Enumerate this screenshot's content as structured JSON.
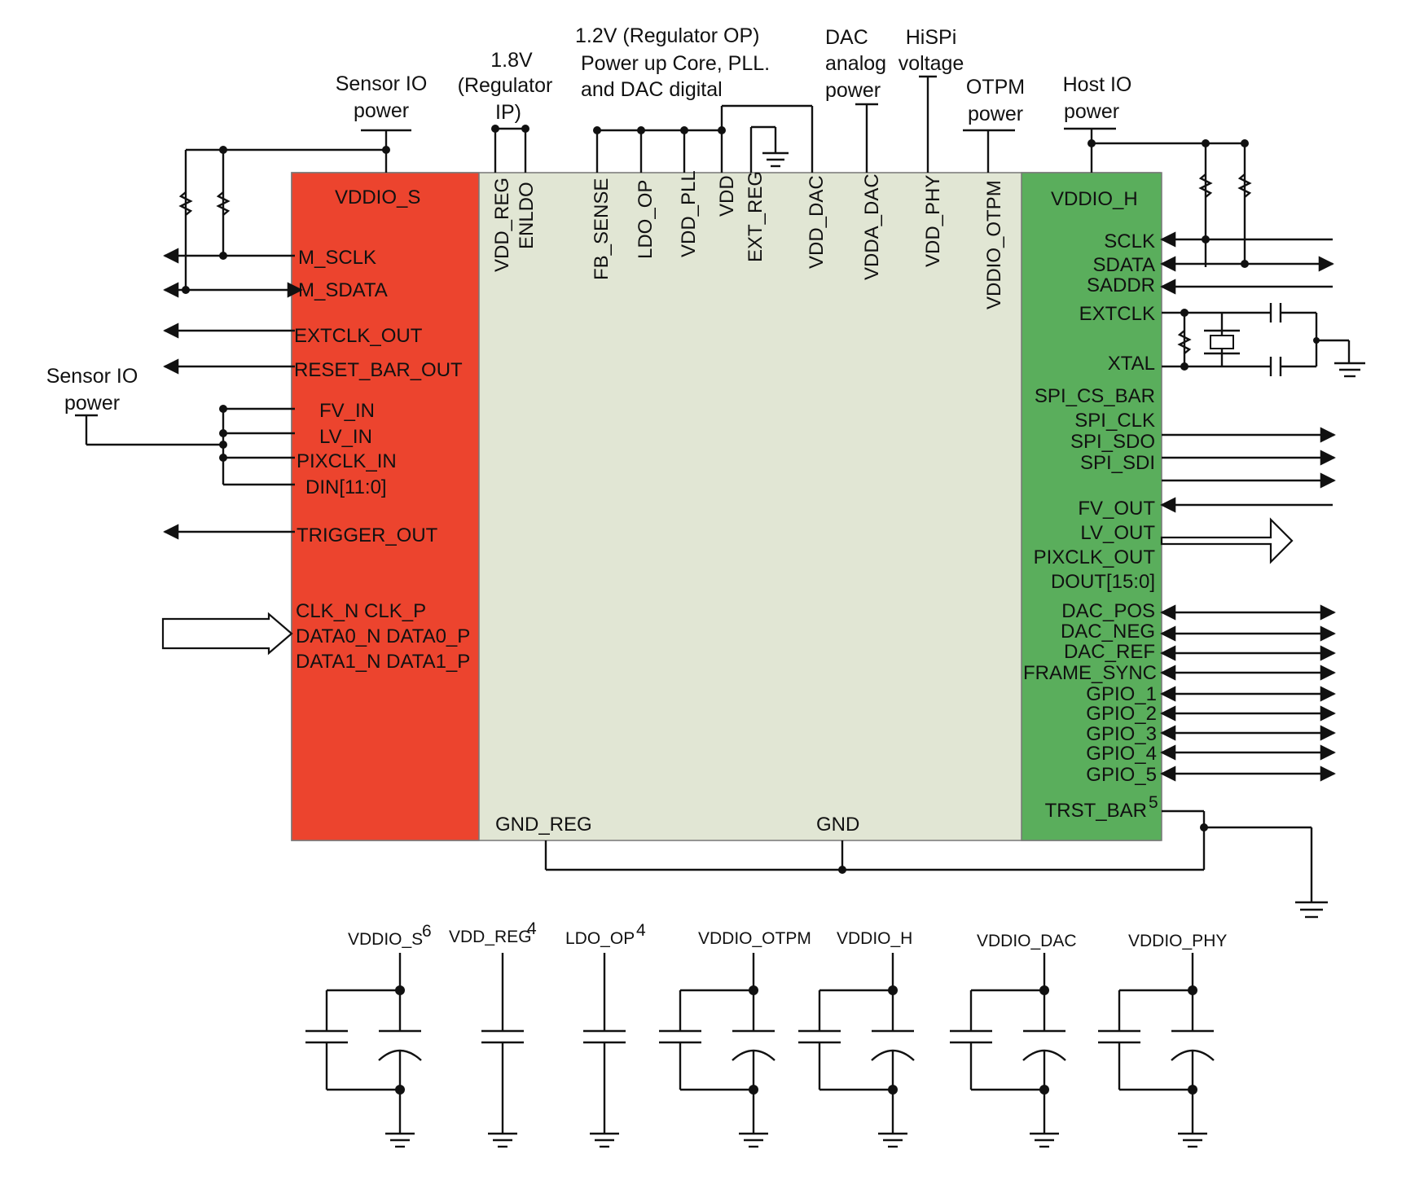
{
  "colors": {
    "left_block": "#EC442E",
    "core_block": "#E1E6D4",
    "right_block": "#5AAE5C",
    "ink": "#111111"
  },
  "supply_labels": {
    "sensor_io_top": [
      "Sensor IO",
      "power"
    ],
    "v18": [
      "1.8V",
      "(Regulator",
      "IP)"
    ],
    "v12": [
      "1.2V  (Regulator OP)",
      "Power up Core, PLL.",
      "and DAC digital"
    ],
    "dac_analog": [
      "DAC",
      "analog",
      "power"
    ],
    "hispi": [
      "HiSPi",
      "voltage"
    ],
    "otpm": [
      "OTPM",
      "power"
    ],
    "host_io": [
      "Host IO",
      "power"
    ],
    "sensor_io_left": [
      "Sensor IO",
      "power"
    ]
  },
  "left_block": {
    "title": "VDDIO_S",
    "pins": [
      "M_SCLK",
      "M_SDATA",
      "EXTCLK_OUT",
      "RESET_BAR_OUT",
      "FV_IN",
      "LV_IN",
      "PIXCLK_IN",
      "DIN[11:0]",
      "TRIGGER_OUT",
      "CLK_N  CLK_P",
      "DATA0_N  DATA0_P",
      "DATA1_N  DATA1_P"
    ]
  },
  "top_pins": [
    "VDD_REG",
    "ENLDO",
    "FB_SENSE",
    "LDO_OP",
    "VDD_PLL",
    "VDD",
    "EXT_REG",
    "VDD_DAC",
    "VDDA_DAC",
    "VDD_PHY",
    "VDDIO_OTPM"
  ],
  "bottom_pins": [
    "GND_REG",
    "GND"
  ],
  "right_block": {
    "title": "VDDIO_H",
    "pins": [
      "SCLK",
      "SDATA",
      "SADDR",
      "EXTCLK",
      "XTAL",
      "SPI_CS_BAR",
      "SPI_CLK",
      "SPI_SDO",
      "SPI_SDI",
      "FV_OUT",
      "LV_OUT",
      "PIXCLK_OUT",
      "DOUT[15:0]",
      "DAC_POS",
      "DAC_NEG",
      "DAC_REF",
      "FRAME_SYNC",
      "GPIO_1",
      "GPIO_2",
      "GPIO_3",
      "GPIO_4",
      "GPIO_5",
      "TRST_BAR"
    ],
    "trst_sup": "5"
  },
  "decoupling": [
    {
      "label": "VDDIO_S",
      "sup": "6",
      "type": "pair"
    },
    {
      "label": "VDD_REG",
      "sup": "4",
      "type": "single"
    },
    {
      "label": "LDO_OP",
      "sup": "4",
      "type": "single"
    },
    {
      "label": "VDDIO_OTPM",
      "sup": "",
      "type": "pair"
    },
    {
      "label": "VDDIO_H",
      "sup": "",
      "type": "pair"
    },
    {
      "label": "VDDIO_DAC",
      "sup": "",
      "type": "pair"
    },
    {
      "label": "VDDIO_PHY",
      "sup": "",
      "type": "pair"
    }
  ]
}
